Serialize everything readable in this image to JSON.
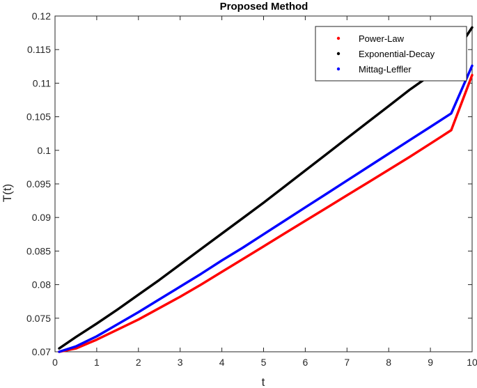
{
  "chart_data": {
    "type": "line",
    "title": "Proposed Method",
    "xlabel": "t",
    "ylabel": "T(t)",
    "xlim": [
      0,
      10
    ],
    "ylim": [
      0.07,
      0.12
    ],
    "xticks": [
      0,
      1,
      2,
      3,
      4,
      5,
      6,
      7,
      8,
      9,
      10
    ],
    "xtick_labels": [
      "0",
      "1",
      "2",
      "3",
      "4",
      "5",
      "6",
      "7",
      "8",
      "9",
      "10"
    ],
    "yticks": [
      0.07,
      0.075,
      0.08,
      0.085,
      0.09,
      0.095,
      0.1,
      0.105,
      0.11,
      0.115,
      0.12
    ],
    "ytick_labels": [
      "0.07",
      "0.075",
      "0.08",
      "0.085",
      "0.09",
      "0.095",
      "0.1",
      "0.105",
      "0.11",
      "0.115",
      "0.12"
    ],
    "grid": false,
    "legend_position": "top-right",
    "x": [
      0.1,
      0.5,
      1,
      1.5,
      2,
      2.5,
      3,
      3.5,
      4,
      4.5,
      5,
      5.5,
      6,
      6.5,
      7,
      7.5,
      8,
      8.5,
      9,
      9.5,
      10
    ],
    "series": [
      {
        "name": "Power-Law",
        "color": "#ff0000",
        "values": [
          0.07,
          0.0705,
          0.0718,
          0.0733,
          0.0748,
          0.0765,
          0.0782,
          0.08,
          0.0819,
          0.0838,
          0.0857,
          0.0876,
          0.0895,
          0.0914,
          0.0933,
          0.0952,
          0.0971,
          0.099,
          0.101,
          0.103,
          0.1112
        ]
      },
      {
        "name": "Exponential-Decay",
        "color": "#000000",
        "values": [
          0.0705,
          0.0722,
          0.0742,
          0.0763,
          0.0785,
          0.0807,
          0.083,
          0.0853,
          0.0876,
          0.0899,
          0.0922,
          0.0946,
          0.097,
          0.0994,
          0.1018,
          0.1042,
          0.1066,
          0.109,
          0.1112,
          0.1136,
          0.1183
        ]
      },
      {
        "name": "Mittag-Leffler",
        "color": "#0000ff",
        "values": [
          0.07,
          0.0708,
          0.0723,
          0.0741,
          0.0759,
          0.0778,
          0.0797,
          0.0816,
          0.0836,
          0.0855,
          0.0875,
          0.0895,
          0.0915,
          0.0935,
          0.0955,
          0.0975,
          0.0995,
          0.1015,
          0.1035,
          0.1055,
          0.1126
        ]
      }
    ]
  }
}
